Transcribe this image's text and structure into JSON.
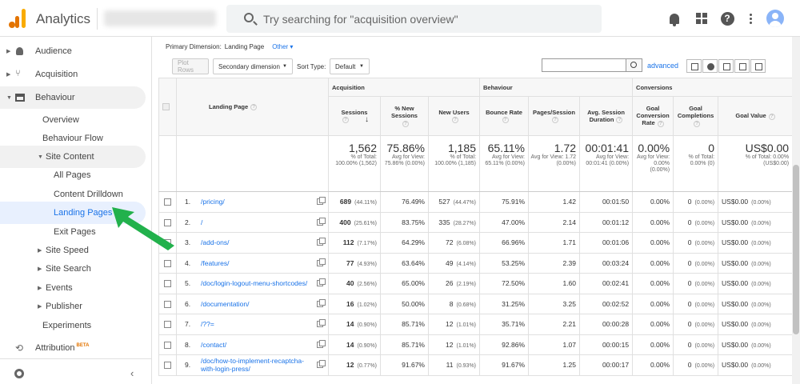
{
  "app": {
    "name": "Analytics",
    "search_placeholder": "Try searching for \"acquisition overview\""
  },
  "topbar_icons": [
    "bell-icon",
    "apps-grid-icon",
    "help-icon",
    "more-vert-icon",
    "avatar"
  ],
  "sidebar": {
    "audience": "Audience",
    "acquisition": "Acquisition",
    "behaviour": "Behaviour",
    "overview": "Overview",
    "behaviour_flow": "Behaviour Flow",
    "site_content": "Site Content",
    "all_pages": "All Pages",
    "content_drilldown": "Content Drilldown",
    "landing_pages": "Landing Pages",
    "exit_pages": "Exit Pages",
    "site_speed": "Site Speed",
    "site_search": "Site Search",
    "events": "Events",
    "publisher": "Publisher",
    "experiments": "Experiments",
    "attribution": "Attribution",
    "attribution_badge": "BETA"
  },
  "toolbar": {
    "primary_dimension_label": "Primary Dimension:",
    "primary_dimension_value": "Landing Page",
    "other": "Other",
    "plot_rows": "Plot Rows",
    "secondary_dimension": "Secondary dimension",
    "sort_type_label": "Sort Type:",
    "sort_type_value": "Default",
    "advanced": "advanced"
  },
  "table": {
    "groups": {
      "acquisition": "Acquisition",
      "behaviour": "Behaviour",
      "conversions": "Conversions"
    },
    "headers": {
      "landing_page": "Landing Page",
      "sessions": "Sessions",
      "new_sessions": "% New Sessions",
      "new_users": "New Users",
      "bounce_rate": "Bounce Rate",
      "pages_session": "Pages/Session",
      "avg_duration": "Avg. Session Duration",
      "goal_conv": "Goal Conversion Rate",
      "goal_comp": "Goal Completions",
      "goal_value": "Goal Value"
    },
    "totals": {
      "sessions": {
        "v": "1,562",
        "s": "% of Total: 100.00% (1,562)"
      },
      "new_sessions": {
        "v": "75.86%",
        "s": "Avg for View: 75.86% (0.00%)"
      },
      "new_users": {
        "v": "1,185",
        "s": "% of Total: 100.00% (1,185)"
      },
      "bounce": {
        "v": "65.11%",
        "s": "Avg for View: 65.11% (0.00%)"
      },
      "pages": {
        "v": "1.72",
        "s": "Avg for View: 1.72 (0.00%)"
      },
      "duration": {
        "v": "00:01:41",
        "s": "Avg for View: 00:01:41 (0.00%)"
      },
      "conv": {
        "v": "0.00%",
        "s": "Avg for View: 0.00% (0.00%)"
      },
      "comp": {
        "v": "0",
        "s": "% of Total: 0.00% (0)"
      },
      "value": {
        "v": "US$0.00",
        "s": "% of Total: 0.00% (US$0.00)"
      }
    },
    "rows": [
      {
        "n": "1.",
        "page": "/pricing/",
        "sessions": "689",
        "sp": "(44.11%)",
        "ns": "76.49%",
        "nu": "527",
        "np": "(44.47%)",
        "br": "75.91%",
        "ps": "1.42",
        "dur": "00:01:50",
        "cr": "0.00%",
        "gc": "0",
        "gp": "(0.00%)",
        "gv": "US$0.00",
        "vp": "(0.00%)"
      },
      {
        "n": "2.",
        "page": "/",
        "sessions": "400",
        "sp": "(25.61%)",
        "ns": "83.75%",
        "nu": "335",
        "np": "(28.27%)",
        "br": "47.00%",
        "ps": "2.14",
        "dur": "00:01:12",
        "cr": "0.00%",
        "gc": "0",
        "gp": "(0.00%)",
        "gv": "US$0.00",
        "vp": "(0.00%)"
      },
      {
        "n": "3.",
        "page": "/add-ons/",
        "sessions": "112",
        "sp": "(7.17%)",
        "ns": "64.29%",
        "nu": "72",
        "np": "(6.08%)",
        "br": "66.96%",
        "ps": "1.71",
        "dur": "00:01:06",
        "cr": "0.00%",
        "gc": "0",
        "gp": "(0.00%)",
        "gv": "US$0.00",
        "vp": "(0.00%)"
      },
      {
        "n": "4.",
        "page": "/features/",
        "sessions": "77",
        "sp": "(4.93%)",
        "ns": "63.64%",
        "nu": "49",
        "np": "(4.14%)",
        "br": "53.25%",
        "ps": "2.39",
        "dur": "00:03:24",
        "cr": "0.00%",
        "gc": "0",
        "gp": "(0.00%)",
        "gv": "US$0.00",
        "vp": "(0.00%)"
      },
      {
        "n": "5.",
        "page": "/doc/login-logout-menu-shortcodes/",
        "sessions": "40",
        "sp": "(2.56%)",
        "ns": "65.00%",
        "nu": "26",
        "np": "(2.19%)",
        "br": "72.50%",
        "ps": "1.60",
        "dur": "00:02:41",
        "cr": "0.00%",
        "gc": "0",
        "gp": "(0.00%)",
        "gv": "US$0.00",
        "vp": "(0.00%)"
      },
      {
        "n": "6.",
        "page": "/documentation/",
        "sessions": "16",
        "sp": "(1.02%)",
        "ns": "50.00%",
        "nu": "8",
        "np": "(0.68%)",
        "br": "31.25%",
        "ps": "3.25",
        "dur": "00:02:52",
        "cr": "0.00%",
        "gc": "0",
        "gp": "(0.00%)",
        "gv": "US$0.00",
        "vp": "(0.00%)"
      },
      {
        "n": "7.",
        "page": "/??=",
        "sessions": "14",
        "sp": "(0.90%)",
        "ns": "85.71%",
        "nu": "12",
        "np": "(1.01%)",
        "br": "35.71%",
        "ps": "2.21",
        "dur": "00:00:28",
        "cr": "0.00%",
        "gc": "0",
        "gp": "(0.00%)",
        "gv": "US$0.00",
        "vp": "(0.00%)"
      },
      {
        "n": "8.",
        "page": "/contact/",
        "sessions": "14",
        "sp": "(0.90%)",
        "ns": "85.71%",
        "nu": "12",
        "np": "(1.01%)",
        "br": "92.86%",
        "ps": "1.07",
        "dur": "00:00:15",
        "cr": "0.00%",
        "gc": "0",
        "gp": "(0.00%)",
        "gv": "US$0.00",
        "vp": "(0.00%)"
      },
      {
        "n": "9.",
        "page": "/doc/how-to-implement-recaptcha-with-login-press/",
        "sessions": "12",
        "sp": "(0.77%)",
        "ns": "91.67%",
        "nu": "11",
        "np": "(0.93%)",
        "br": "91.67%",
        "ps": "1.25",
        "dur": "00:00:17",
        "cr": "0.00%",
        "gc": "0",
        "gp": "(0.00%)",
        "gv": "US$0.00",
        "vp": "(0.00%)"
      }
    ]
  },
  "colors": {
    "link": "#1a73e8",
    "annotation_arrow": "#22b14c",
    "logo": "#f9ab00"
  }
}
